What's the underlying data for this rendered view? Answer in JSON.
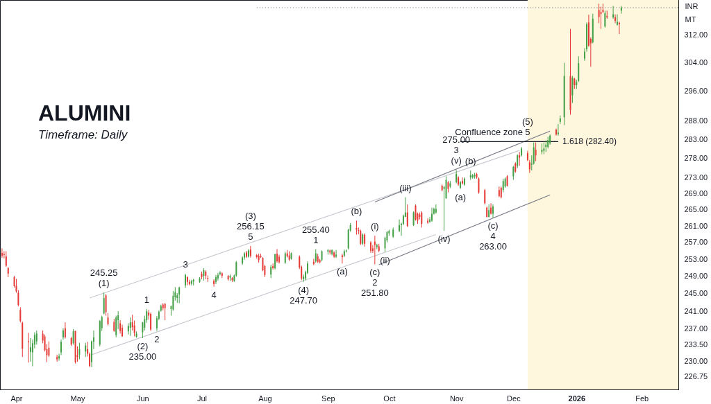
{
  "chart_data": {
    "type": "candlestick",
    "title": "ALUMINI",
    "subtitle": "Timeframe: Daily",
    "ylabel": "INR\nMT",
    "log": "y",
    "xlim": [
      "2025-03-24",
      "2026-02-20"
    ],
    "ylim": [
      224.0,
      322.4
    ],
    "xticks": [
      {
        "value": "2025-04-01",
        "label": "Apr"
      },
      {
        "value": "2025-05-01",
        "label": "May"
      },
      {
        "value": "2025-06-02",
        "label": "Jun"
      },
      {
        "value": "2025-07-01",
        "label": "Jul"
      },
      {
        "value": "2025-08-01",
        "label": "Aug"
      },
      {
        "value": "2025-09-01",
        "label": "Sep"
      },
      {
        "value": "2025-10-01",
        "label": "Oct"
      },
      {
        "value": "2025-11-03",
        "label": "Nov"
      },
      {
        "value": "2025-12-01",
        "label": "Dec"
      },
      {
        "value": "2026-01-01",
        "label": "2026"
      },
      {
        "value": "2026-02-02",
        "label": "Feb"
      }
    ],
    "yticks": [
      226.75,
      {
        "value": 230,
        "label": "230.00"
      },
      {
        "value": 233.5,
        "label": "233.50"
      },
      {
        "value": 237,
        "label": "237.00"
      },
      {
        "value": 241,
        "label": "241.00"
      },
      {
        "value": 245,
        "label": "245.00"
      },
      {
        "value": 249,
        "label": "249.00"
      },
      {
        "value": 253,
        "label": "253.00"
      },
      {
        "value": 257,
        "label": "257.00"
      },
      {
        "value": 261,
        "label": "261.00"
      },
      {
        "value": 265,
        "label": "265.00"
      },
      {
        "value": 269,
        "label": "269.00"
      },
      {
        "value": 273,
        "label": "273.00"
      },
      {
        "value": 278,
        "label": "278.00"
      },
      {
        "value": 283,
        "label": "283.00"
      },
      {
        "value": 288,
        "label": "288.00"
      },
      {
        "value": 296,
        "label": "296.00"
      },
      {
        "value": 304,
        "label": "304.00"
      },
      {
        "value": 312,
        "label": "312.00"
      }
    ],
    "x": [
      "2025-03-25",
      "2025-03-26",
      "2025-03-27",
      "2025-03-28",
      "2025-03-31",
      "2025-04-01",
      "2025-04-02",
      "2025-04-03",
      "2025-04-04",
      "2025-04-07",
      "2025-04-08",
      "2025-04-09",
      "2025-04-10",
      "2025-04-11",
      "2025-04-14",
      "2025-04-15",
      "2025-04-16",
      "2025-04-17",
      "2025-04-21",
      "2025-04-22",
      "2025-04-23",
      "2025-04-24",
      "2025-04-25",
      "2025-04-28",
      "2025-04-29",
      "2025-04-30",
      "2025-05-01",
      "2025-05-02",
      "2025-05-05",
      "2025-05-06",
      "2025-05-07",
      "2025-05-08",
      "2025-05-09",
      "2025-05-12",
      "2025-05-13",
      "2025-05-14",
      "2025-05-15",
      "2025-05-16",
      "2025-05-19",
      "2025-05-20",
      "2025-05-21",
      "2025-05-22",
      "2025-05-23",
      "2025-05-26",
      "2025-05-27",
      "2025-05-28",
      "2025-05-29",
      "2025-05-30",
      "2025-06-02",
      "2025-06-03",
      "2025-06-04",
      "2025-06-05",
      "2025-06-06",
      "2025-06-09",
      "2025-06-10",
      "2025-06-11",
      "2025-06-12",
      "2025-06-13",
      "2025-06-16",
      "2025-06-17",
      "2025-06-18",
      "2025-06-19",
      "2025-06-20",
      "2025-06-23",
      "2025-06-24",
      "2025-06-25",
      "2025-06-26",
      "2025-06-27",
      "2025-06-30",
      "2025-07-01",
      "2025-07-02",
      "2025-07-03",
      "2025-07-04",
      "2025-07-07",
      "2025-07-08",
      "2025-07-09",
      "2025-07-10",
      "2025-07-11",
      "2025-07-14",
      "2025-07-15",
      "2025-07-16",
      "2025-07-17",
      "2025-07-18",
      "2025-07-21",
      "2025-07-22",
      "2025-07-23",
      "2025-07-24",
      "2025-07-25",
      "2025-07-28",
      "2025-07-29",
      "2025-07-30",
      "2025-07-31",
      "2025-08-01",
      "2025-08-04",
      "2025-08-05",
      "2025-08-06",
      "2025-08-07",
      "2025-08-08",
      "2025-08-11",
      "2025-08-12",
      "2025-08-13",
      "2025-08-14",
      "2025-08-18",
      "2025-08-19",
      "2025-08-20",
      "2025-08-21",
      "2025-08-22",
      "2025-08-25",
      "2025-08-26",
      "2025-08-27",
      "2025-08-28",
      "2025-08-29",
      "2025-09-01",
      "2025-09-02",
      "2025-09-03",
      "2025-09-04",
      "2025-09-05",
      "2025-09-08",
      "2025-09-09",
      "2025-09-10",
      "2025-09-11",
      "2025-09-12",
      "2025-09-15",
      "2025-09-16",
      "2025-09-17",
      "2025-09-18",
      "2025-09-19",
      "2025-09-22",
      "2025-09-23",
      "2025-09-24",
      "2025-09-25",
      "2025-09-26",
      "2025-09-29",
      "2025-09-30",
      "2025-10-01",
      "2025-10-03",
      "2025-10-06",
      "2025-10-07",
      "2025-10-08",
      "2025-10-09",
      "2025-10-10",
      "2025-10-13",
      "2025-10-14",
      "2025-10-15",
      "2025-10-16",
      "2025-10-17",
      "2025-10-20",
      "2025-10-21",
      "2025-10-22",
      "2025-10-23",
      "2025-10-24",
      "2025-10-27",
      "2025-10-28",
      "2025-10-29",
      "2025-10-30",
      "2025-10-31",
      "2025-11-03",
      "2025-11-04",
      "2025-11-05",
      "2025-11-06",
      "2025-11-07",
      "2025-11-10",
      "2025-11-11",
      "2025-11-12",
      "2025-11-13",
      "2025-11-14",
      "2025-11-17",
      "2025-11-18",
      "2025-11-19",
      "2025-11-20",
      "2025-11-21",
      "2025-11-24",
      "2025-11-25",
      "2025-11-26",
      "2025-11-27",
      "2025-11-28",
      "2025-12-01",
      "2025-12-02",
      "2025-12-03",
      "2025-12-04",
      "2025-12-05",
      "2025-12-08",
      "2025-12-09",
      "2025-12-10",
      "2025-12-11",
      "2025-12-12",
      "2025-12-15",
      "2025-12-16",
      "2025-12-17",
      "2025-12-18",
      "2025-12-19",
      "2025-12-22",
      "2025-12-23",
      "2025-12-24",
      "2025-12-26",
      "2025-12-29",
      "2025-12-30",
      "2025-12-31",
      "2026-01-01",
      "2026-01-02",
      "2026-01-05",
      "2026-01-06",
      "2026-01-07",
      "2026-01-08",
      "2026-01-09",
      "2026-01-12",
      "2026-01-13",
      "2026-01-14",
      "2026-01-15",
      "2026-01-16",
      "2026-01-19",
      "2026-01-20",
      "2026-01-21",
      "2026-01-22",
      "2026-01-23"
    ],
    "ohlc": [
      [
        254.5,
        255.6,
        253.3,
        253.8
      ],
      [
        254.2,
        254.9,
        253.2,
        254.0
      ],
      [
        253.7,
        254.9,
        251.2,
        251.5
      ],
      [
        250.9,
        251.2,
        248.8,
        249.6
      ],
      [
        248.8,
        249.1,
        246.4,
        246.7
      ],
      [
        246.8,
        248.4,
        245.2,
        245.5
      ],
      [
        245.2,
        245.8,
        242.1,
        242.4
      ],
      [
        241.3,
        241.9,
        238.5,
        238.8
      ],
      [
        238.4,
        238.7,
        230.9,
        232.7
      ],
      [
        234.3,
        236.2,
        229.7,
        234.1
      ],
      [
        232.0,
        235.0,
        229.9,
        233.0
      ],
      [
        231.9,
        234.7,
        228.9,
        233.9
      ],
      [
        233.6,
        236.3,
        232.8,
        235.7
      ],
      [
        234.3,
        236.7,
        233.6,
        236.0
      ],
      [
        236.0,
        236.7,
        233.9,
        234.5
      ],
      [
        235.4,
        235.8,
        232.1,
        232.4
      ],
      [
        232.6,
        233.7,
        229.8,
        231.3
      ],
      [
        232.9,
        234.3,
        230.9,
        231.2
      ],
      [
        230.9,
        231.4,
        229.9,
        230.4
      ],
      [
        230.6,
        231.6,
        230.1,
        231.1
      ],
      [
        231.9,
        234.7,
        231.3,
        234.2
      ],
      [
        235.2,
        237.2,
        234.7,
        236.7
      ],
      [
        237.2,
        238.5,
        234.9,
        235.2
      ],
      [
        235.0,
        235.3,
        233.3,
        233.6
      ],
      [
        233.9,
        237.0,
        233.6,
        236.5
      ],
      [
        236.6,
        236.6,
        229.5,
        229.8
      ],
      [
        231.3,
        233.2,
        229.9,
        230.9
      ],
      [
        231.4,
        234.0,
        230.4,
        232.6
      ],
      [
        232.1,
        234.0,
        230.9,
        233.4
      ],
      [
        232.6,
        234.2,
        231.0,
        231.6
      ],
      [
        231.6,
        231.9,
        228.7,
        229.0
      ],
      [
        229.8,
        234.5,
        228.7,
        234.3
      ],
      [
        234.2,
        236.7,
        232.6,
        235.2
      ],
      [
        233.6,
        239.0,
        233.2,
        238.8
      ],
      [
        237.2,
        240.0,
        236.6,
        239.7
      ],
      [
        240.5,
        245.25,
        240.3,
        244.0
      ],
      [
        244.6,
        244.9,
        240.0,
        240.8
      ],
      [
        239.6,
        240.6,
        237.8,
        238.1
      ],
      [
        238.6,
        239.3,
        236.4,
        236.6
      ],
      [
        235.7,
        240.0,
        235.2,
        239.6
      ],
      [
        239.0,
        241.0,
        237.0,
        240.1
      ],
      [
        238.3,
        239.0,
        236.0,
        236.6
      ],
      [
        237.3,
        238.0,
        235.3,
        235.4
      ],
      [
        236.5,
        238.3,
        235.8,
        237.7
      ],
      [
        237.3,
        239.6,
        235.5,
        238.5
      ],
      [
        238.5,
        240.2,
        236.7,
        237.4
      ],
      [
        237.8,
        238.9,
        235.4,
        236.1
      ],
      [
        235.3,
        236.5,
        235.1,
        236.0
      ],
      [
        236.3,
        238.6,
        235.0,
        238.5
      ],
      [
        237.3,
        240.0,
        236.7,
        239.2
      ],
      [
        239.0,
        241.5,
        238.4,
        241.0
      ],
      [
        240.7,
        241.3,
        239.1,
        240.0
      ],
      [
        240.4,
        240.7,
        236.6,
        236.9
      ],
      [
        237.2,
        239.9,
        236.6,
        239.4
      ],
      [
        239.3,
        241.2,
        239.0,
        240.9
      ],
      [
        241.1,
        242.5,
        240.9,
        242.2
      ],
      [
        242.5,
        242.8,
        241.2,
        241.7
      ],
      [
        242.6,
        242.9,
        239.0,
        241.7
      ],
      [
        241.5,
        242.3,
        240.0,
        242.1
      ],
      [
        241.4,
        245.6,
        241.1,
        244.5
      ],
      [
        244.2,
        246.5,
        243.4,
        245.3
      ],
      [
        244.0,
        245.1,
        242.9,
        244.6
      ],
      [
        244.8,
        246.6,
        242.8,
        246.4
      ],
      [
        246.9,
        249.6,
        246.3,
        249.3
      ],
      [
        248.8,
        249.0,
        246.9,
        247.7
      ],
      [
        247.7,
        248.2,
        246.9,
        247.2
      ],
      [
        247.3,
        248.2,
        246.9,
        247.9
      ],
      [
        247.8,
        248.4,
        246.9,
        248.2
      ],
      [
        247.7,
        248.8,
        247.5,
        248.5
      ],
      [
        249.6,
        250.1,
        248.3,
        248.8
      ],
      [
        249.1,
        250.9,
        248.0,
        250.4
      ],
      [
        250.1,
        250.4,
        248.3,
        249.1
      ],
      [
        248.6,
        249.2,
        247.7,
        248.4
      ],
      [
        248.0,
        248.3,
        246.6,
        247.2
      ],
      [
        247.7,
        249.3,
        247.2,
        248.8
      ],
      [
        248.5,
        249.8,
        248.0,
        249.3
      ],
      [
        249.5,
        250.2,
        249.2,
        249.9
      ],
      [
        249.7,
        250.0,
        248.6,
        249.1
      ],
      [
        249.1,
        249.3,
        248.0,
        248.3
      ],
      [
        248.7,
        249.4,
        247.9,
        249.1
      ],
      [
        248.6,
        248.8,
        247.7,
        248.1
      ],
      [
        247.9,
        249.4,
        247.7,
        249.2
      ],
      [
        249.2,
        252.6,
        248.9,
        252.3
      ],
      [
        252.0,
        253.7,
        251.7,
        253.4
      ],
      [
        253.4,
        254.7,
        252.9,
        254.4
      ],
      [
        254.6,
        255.0,
        253.3,
        253.6
      ],
      [
        253.6,
        255.4,
        253.4,
        255.1
      ],
      [
        255.3,
        256.15,
        253.4,
        253.8
      ],
      [
        254.0,
        254.2,
        253.2,
        253.5
      ],
      [
        253.8,
        254.3,
        252.2,
        252.8
      ],
      [
        253.8,
        254.3,
        253.3,
        253.5
      ],
      [
        253.3,
        253.5,
        250.2,
        250.4
      ],
      [
        251.4,
        251.7,
        248.8,
        249.3
      ],
      [
        249.4,
        251.7,
        248.6,
        251.2
      ],
      [
        251.4,
        252.0,
        250.6,
        250.9
      ],
      [
        250.9,
        254.3,
        250.6,
        254.2
      ],
      [
        254.3,
        255.4,
        252.2,
        252.5
      ],
      [
        253.6,
        254.1,
        252.0,
        252.3
      ],
      [
        252.2,
        254.8,
        251.9,
        254.4
      ],
      [
        254.4,
        255.2,
        253.4,
        253.7
      ],
      [
        253.9,
        254.9,
        252.6,
        252.9
      ],
      [
        253.1,
        254.6,
        252.9,
        254.4
      ],
      [
        253.6,
        253.9,
        250.7,
        251.1
      ],
      [
        251.2,
        251.5,
        248.1,
        248.5
      ],
      [
        248.3,
        249.4,
        247.7,
        248.9
      ],
      [
        248.5,
        250.3,
        248.1,
        250.0
      ],
      [
        249.8,
        252.5,
        249.5,
        252.0
      ],
      [
        252.4,
        253.1,
        251.6,
        251.9
      ],
      [
        252.5,
        255.4,
        252.2,
        254.4
      ],
      [
        253.7,
        254.3,
        252.1,
        252.4
      ],
      [
        252.8,
        253.1,
        252.0,
        252.3
      ],
      [
        252.8,
        255.1,
        252.5,
        254.9
      ],
      [
        254.8,
        255.4,
        254.1,
        255.2
      ],
      [
        255.1,
        255.3,
        254.1,
        254.6
      ],
      [
        254.2,
        255.3,
        253.9,
        255.2
      ],
      [
        254.6,
        254.9,
        253.3,
        253.6
      ],
      [
        253.6,
        255.2,
        253.3,
        254.1
      ],
      [
        253.9,
        254.3,
        252.0,
        253.5
      ],
      [
        253.8,
        255.3,
        253.5,
        254.9
      ],
      [
        254.9,
        255.3,
        254.6,
        255.1
      ],
      [
        255.6,
        260.3,
        255.3,
        260.1
      ],
      [
        259.9,
        261.7,
        259.6,
        261.2
      ],
      [
        260.5,
        262.3,
        258.9,
        260.1
      ],
      [
        260.0,
        260.6,
        259.0,
        259.8
      ],
      [
        259.8,
        260.1,
        256.4,
        256.7
      ],
      [
        256.7,
        259.2,
        256.4,
        258.9
      ],
      [
        258.9,
        259.2,
        256.0,
        256.7
      ],
      [
        257.0,
        257.3,
        254.5,
        255.0
      ],
      [
        255.6,
        256.4,
        254.5,
        255.0
      ],
      [
        257.2,
        258.6,
        251.8,
        256.4
      ],
      [
        255.9,
        256.7,
        255.4,
        256.4
      ],
      [
        256.1,
        256.7,
        254.7,
        255.0
      ],
      [
        255.6,
        258.4,
        254.7,
        258.1
      ],
      [
        257.5,
        259.8,
        257.0,
        259.5
      ],
      [
        259.2,
        260.1,
        258.6,
        259.8
      ],
      [
        258.4,
        260.6,
        258.1,
        260.1
      ],
      [
        259.8,
        262.6,
        259.5,
        261.2
      ],
      [
        261.2,
        261.8,
        258.6,
        261.5
      ],
      [
        261.5,
        263.8,
        261.2,
        263.5
      ],
      [
        263.2,
        268.1,
        263.2,
        264.3
      ],
      [
        264.3,
        266.3,
        260.7,
        261.0
      ],
      [
        261.2,
        264.6,
        261.0,
        264.3
      ],
      [
        266.0,
        266.3,
        262.3,
        262.6
      ],
      [
        264.0,
        264.3,
        261.5,
        262.3
      ],
      [
        263.8,
        264.3,
        262.6,
        263.2
      ],
      [
        264.3,
        264.6,
        260.6,
        261.5
      ],
      [
        262.3,
        262.9,
        261.5,
        261.8
      ],
      [
        262.0,
        263.2,
        261.8,
        262.6
      ],
      [
        262.3,
        265.5,
        262.0,
        264.0
      ],
      [
        264.0,
        265.5,
        263.8,
        265.2
      ],
      [
        264.3,
        266.3,
        264.0,
        265.2
      ],
      [
        271.0,
        271.3,
        269.6,
        269.9
      ],
      [
        270.2,
        271.0,
        259.8,
        270.7
      ],
      [
        267.8,
        273.4,
        267.8,
        272.5
      ],
      [
        271.9,
        272.2,
        269.3,
        270.2
      ],
      [
        270.8,
        272.2,
        270.4,
        271.6
      ],
      [
        271.9,
        275.0,
        271.6,
        274.0
      ],
      [
        273.1,
        273.4,
        271.0,
        271.3
      ],
      [
        270.5,
        272.2,
        270.2,
        271.9
      ],
      [
        272.2,
        273.1,
        271.3,
        271.6
      ],
      [
        271.3,
        273.1,
        271.0,
        272.8
      ],
      [
        273.1,
        274.9,
        272.5,
        273.7
      ],
      [
        273.1,
        274.0,
        272.8,
        273.7
      ],
      [
        273.4,
        274.3,
        272.8,
        273.7
      ],
      [
        274.0,
        274.3,
        272.8,
        273.1
      ],
      [
        272.8,
        273.1,
        269.0,
        269.3
      ],
      [
        269.9,
        270.2,
        266.3,
        266.6
      ],
      [
        265.5,
        265.8,
        263.1,
        263.2
      ],
      [
        263.2,
        266.3,
        263.1,
        264.9
      ],
      [
        265.5,
        266.6,
        263.8,
        264.0
      ],
      [
        264.0,
        266.3,
        263.0,
        265.8
      ],
      [
        269.9,
        270.8,
        268.1,
        268.4
      ],
      [
        270.5,
        270.8,
        267.8,
        268.1
      ],
      [
        269.9,
        272.8,
        269.3,
        272.2
      ],
      [
        270.8,
        273.1,
        270.5,
        272.8
      ],
      [
        273.4,
        273.7,
        270.8,
        271.0
      ],
      [
        273.4,
        276.1,
        272.5,
        275.8
      ],
      [
        276.7,
        277.0,
        274.3,
        274.6
      ],
      [
        276.1,
        279.1,
        275.5,
        278.8
      ],
      [
        278.8,
        279.7,
        276.1,
        278.2
      ],
      [
        278.8,
        281.0,
        278.5,
        280.6
      ],
      [
        279.4,
        280.0,
        277.3,
        277.6
      ],
      [
        277.0,
        277.6,
        274.3,
        275.2
      ],
      [
        276.4,
        278.8,
        274.9,
        276.7
      ],
      [
        276.7,
        282.2,
        276.4,
        280.9
      ],
      [
        280.3,
        282.2,
        277.3,
        278.8
      ],
      [
        279.7,
        281.9,
        279.1,
        280.3
      ],
      [
        280.0,
        282.2,
        279.1,
        280.6
      ],
      [
        281.0,
        282.8,
        279.7,
        281.6
      ],
      [
        281.0,
        283.7,
        280.6,
        282.8
      ],
      [
        282.0,
        284.3,
        281.6,
        284.0
      ],
      [
        285.6,
        285.9,
        284.0,
        284.3
      ],
      [
        284.4,
        287.1,
        284.0,
        284.8
      ],
      [
        287.7,
        289.4,
        287.1,
        288.6
      ],
      [
        288.9,
        304.0,
        286.8,
        300.3
      ],
      [
        300.3,
        313.8,
        289.6,
        290.9
      ],
      [
        294.9,
        300.3,
        292.8,
        299.8
      ],
      [
        299.5,
        299.8,
        296.7,
        297.7
      ],
      [
        297.7,
        299.2,
        296.7,
        298.6
      ],
      [
        298.9,
        305.9,
        298.6,
        303.9
      ],
      [
        305.2,
        308.2,
        304.6,
        307.2
      ],
      [
        307.9,
        315.7,
        307.2,
        315.2
      ],
      [
        315.7,
        318.0,
        308.6,
        308.9
      ],
      [
        310.9,
        311.3,
        302.9,
        309.6
      ],
      [
        309.9,
        318.3,
        309.6,
        316.8
      ],
      [
        319.4,
        321.3,
        315.5,
        317.3
      ],
      [
        318.8,
        320.4,
        313.8,
        318.2
      ],
      [
        319.4,
        321.3,
        318.5,
        318.8
      ],
      [
        314.5,
        319.2,
        314.2,
        318.5
      ],
      [
        317.6,
        319.2,
        316.8,
        317.2
      ],
      [
        317.2,
        320.6,
        316.8,
        318.1
      ],
      [
        317.2,
        318.1,
        315.5,
        316.2
      ],
      [
        315.0,
        318.1,
        314.8,
        315.9
      ],
      [
        315.6,
        315.9,
        312.3,
        315.2
      ],
      [
        319.2,
        320.6,
        318.3,
        320.1
      ]
    ],
    "colors": [
      "#e53935",
      "#e53935",
      "#e53935",
      "#e53935",
      "#e53935",
      "#e53935",
      "#e53935",
      "#e53935",
      "#e53935",
      "#e53935",
      "#43a047",
      "#43a047",
      "#43a047",
      "#43a047",
      "#e53935",
      "#e53935",
      "#e53935",
      "#e53935",
      "#e53935",
      "#43a047",
      "#43a047",
      "#43a047",
      "#e53935",
      "#e53935",
      "#43a047",
      "#e53935",
      "#e53935",
      "#43a047",
      "#43a047",
      "#e53935",
      "#e53935",
      "#43a047",
      "#43a047",
      "#43a047",
      "#43a047",
      "#43a047",
      "#e53935",
      "#e53935",
      "#e53935",
      "#43a047",
      "#43a047",
      "#e53935",
      "#e53935",
      "#43a047",
      "#43a047",
      "#e53935",
      "#e53935",
      "#43a047",
      "#43a047",
      "#43a047",
      "#43a047",
      "#e53935",
      "#e53935",
      "#43a047",
      "#43a047",
      "#43a047",
      "#e53935",
      "#e53935",
      "#43a047",
      "#43a047",
      "#43a047",
      "#43a047",
      "#43a047",
      "#43a047",
      "#e53935",
      "#e53935",
      "#43a047",
      "#43a047",
      "#43a047",
      "#e53935",
      "#43a047",
      "#e53935",
      "#e53935",
      "#e53935",
      "#43a047",
      "#43a047",
      "#43a047",
      "#e53935",
      "#e53935",
      "#43a047",
      "#e53935",
      "#43a047",
      "#43a047",
      "#43a047",
      "#43a047",
      "#e53935",
      "#43a047",
      "#e53935",
      "#e53935",
      "#e53935",
      "#e53935",
      "#e53935",
      "#e53935",
      "#43a047",
      "#e53935",
      "#43a047",
      "#e53935",
      "#e53935",
      "#43a047",
      "#e53935",
      "#e53935",
      "#43a047",
      "#e53935",
      "#e53935",
      "#43a047",
      "#43a047",
      "#43a047",
      "#e53935",
      "#43a047",
      "#e53935",
      "#e53935",
      "#43a047",
      "#43a047",
      "#e53935",
      "#43a047",
      "#e53935",
      "#43a047",
      "#e53935",
      "#43a047",
      "#43a047",
      "#43a047",
      "#43a047",
      "#e53935",
      "#e53935",
      "#e53935",
      "#43a047",
      "#e53935",
      "#e53935",
      "#e53935",
      "#e53935",
      "#43a047",
      "#e53935",
      "#43a047",
      "#43a047",
      "#43a047",
      "#43a047",
      "#43a047",
      "#43a047",
      "#43a047",
      "#43a047",
      "#e53935",
      "#43a047",
      "#e53935",
      "#e53935",
      "#e53935",
      "#e53935",
      "#e53935",
      "#43a047",
      "#43a047",
      "#43a047",
      "#43a047",
      "#e53935",
      "#43a047",
      "#43a047",
      "#e53935",
      "#43a047",
      "#43a047",
      "#e53935",
      "#43a047",
      "#e53935",
      "#43a047",
      "#43a047",
      "#43a047",
      "#43a047",
      "#e53935",
      "#e53935",
      "#e53935",
      "#e53935",
      "#43a047",
      "#e53935",
      "#43a047",
      "#e53935",
      "#e53935",
      "#43a047",
      "#43a047",
      "#e53935",
      "#43a047",
      "#e53935",
      "#43a047",
      "#e53935",
      "#43a047",
      "#e53935",
      "#e53935",
      "#43a047",
      "#43a047",
      "#e53935",
      "#43a047",
      "#43a047",
      "#43a047",
      "#43a047",
      "#43a047",
      "#e53935",
      "#43a047",
      "#43a047",
      "#43a047",
      "#e53935",
      "#43a047",
      "#e53935",
      "#43a047",
      "#43a047",
      "#43a047",
      "#43a047",
      "#e53935",
      "#e53935",
      "#43a047",
      "#e53935",
      "#e53935",
      "#e53935",
      "#43a047",
      "#e53935",
      "#43a047",
      "#e53935",
      "#43a047",
      "#e53935",
      "#43a047"
    ],
    "series": [
      {
        "type": "line",
        "x": [
          "2025-05-07",
          "2025-12-04"
        ],
        "values": [
          244.0,
          280.1
        ],
        "color": "#c8cad0"
      },
      {
        "type": "line",
        "x": [
          "2025-05-08",
          "2025-10-24"
        ],
        "values": [
          231.4,
          258.9
        ],
        "color": "#c8cad0"
      },
      {
        "type": "line",
        "x": [
          "2025-09-24",
          "2025-12-19"
        ],
        "values": [
          266.9,
          285.2
        ],
        "color": "#787b86"
      },
      {
        "type": "line",
        "x": [
          "2025-09-26",
          "2025-12-19"
        ],
        "values": [
          251.7,
          268.7
        ],
        "color": "#787b86"
      },
      {
        "type": "line",
        "name": "1.618 (282.40)",
        "x": [
          "2025-11-05",
          "2025-12-23"
        ],
        "values": [
          282.4,
          282.4
        ],
        "color": "#131722"
      },
      {
        "type": "line",
        "x": [
          "2025-07-28",
          "2026-02-20"
        ],
        "values": [
          320.1,
          320.1
        ],
        "color": "#9598a1",
        "line_style": "dotted"
      }
    ],
    "bands": [
      {
        "axis": "x",
        "from": "2025-12-08",
        "to": "2026-02-20",
        "color": "#fef6dd"
      }
    ],
    "annotations": [
      {
        "text": "(1)",
        "x": "2025-05-14",
        "y": 245.25
      },
      {
        "text": "245.25",
        "x": "2025-05-14",
        "y": 245.25
      },
      {
        "text": "(2)",
        "x": "2025-06-02",
        "y": 235.0
      },
      {
        "text": "235.00",
        "x": "2025-06-02",
        "y": 235.0
      },
      {
        "text": "1",
        "x": "2025-06-04",
        "y": 241.5
      },
      {
        "text": "2",
        "x": "2025-06-09",
        "y": 236.6
      },
      {
        "text": "3",
        "x": "2025-06-23",
        "y": 249.6
      },
      {
        "text": "4",
        "x": "2025-07-07",
        "y": 246.6
      },
      {
        "text": "5",
        "x": "2025-07-25",
        "y": 256.15
      },
      {
        "text": "256.15",
        "x": "2025-07-25",
        "y": 256.15
      },
      {
        "text": "(3)",
        "x": "2025-07-25",
        "y": 256.15
      },
      {
        "text": "(4)",
        "x": "2025-08-20",
        "y": 247.7
      },
      {
        "text": "247.70",
        "x": "2025-08-20",
        "y": 247.7
      },
      {
        "text": "1",
        "x": "2025-08-26",
        "y": 255.4
      },
      {
        "text": "255.40",
        "x": "2025-08-26",
        "y": 255.4
      },
      {
        "text": "(a)",
        "x": "2025-09-08",
        "y": 252.0
      },
      {
        "text": "(b)",
        "x": "2025-09-15",
        "y": 262.3
      },
      {
        "text": "(i)",
        "x": "2025-09-24",
        "y": 258.6
      },
      {
        "text": "(c)",
        "x": "2025-09-24",
        "y": 251.8
      },
      {
        "text": "2",
        "x": "2025-09-24",
        "y": 251.8
      },
      {
        "text": "251.80",
        "x": "2025-09-24",
        "y": 251.8
      },
      {
        "text": "(ii)",
        "x": "2025-09-29",
        "y": 254.7
      },
      {
        "text": "(iii)",
        "x": "2025-10-09",
        "y": 268.1
      },
      {
        "text": "(iv)",
        "x": "2025-10-28",
        "y": 259.8
      },
      {
        "text": "(v)",
        "x": "2025-11-03",
        "y": 275.0
      },
      {
        "text": "3",
        "x": "2025-11-03",
        "y": 275.0
      },
      {
        "text": "275.00",
        "x": "2025-11-03",
        "y": 275.0
      },
      {
        "text": "(a)",
        "x": "2025-11-05",
        "y": 270.2
      },
      {
        "text": "(b)",
        "x": "2025-11-10",
        "y": 274.9
      },
      {
        "text": "(c)",
        "x": "2025-11-21",
        "y": 263.0
      },
      {
        "text": "4",
        "x": "2025-11-21",
        "y": 263.0
      },
      {
        "text": "263.00",
        "x": "2025-11-21",
        "y": 263.0
      },
      {
        "text": "Confluence zone",
        "x": "2025-11-19",
        "y": 282.4
      },
      {
        "text": "5",
        "x": "2025-12-08",
        "y": 282.4
      },
      {
        "text": "(5)",
        "x": "2025-12-08",
        "y": 282.4
      }
    ]
  }
}
